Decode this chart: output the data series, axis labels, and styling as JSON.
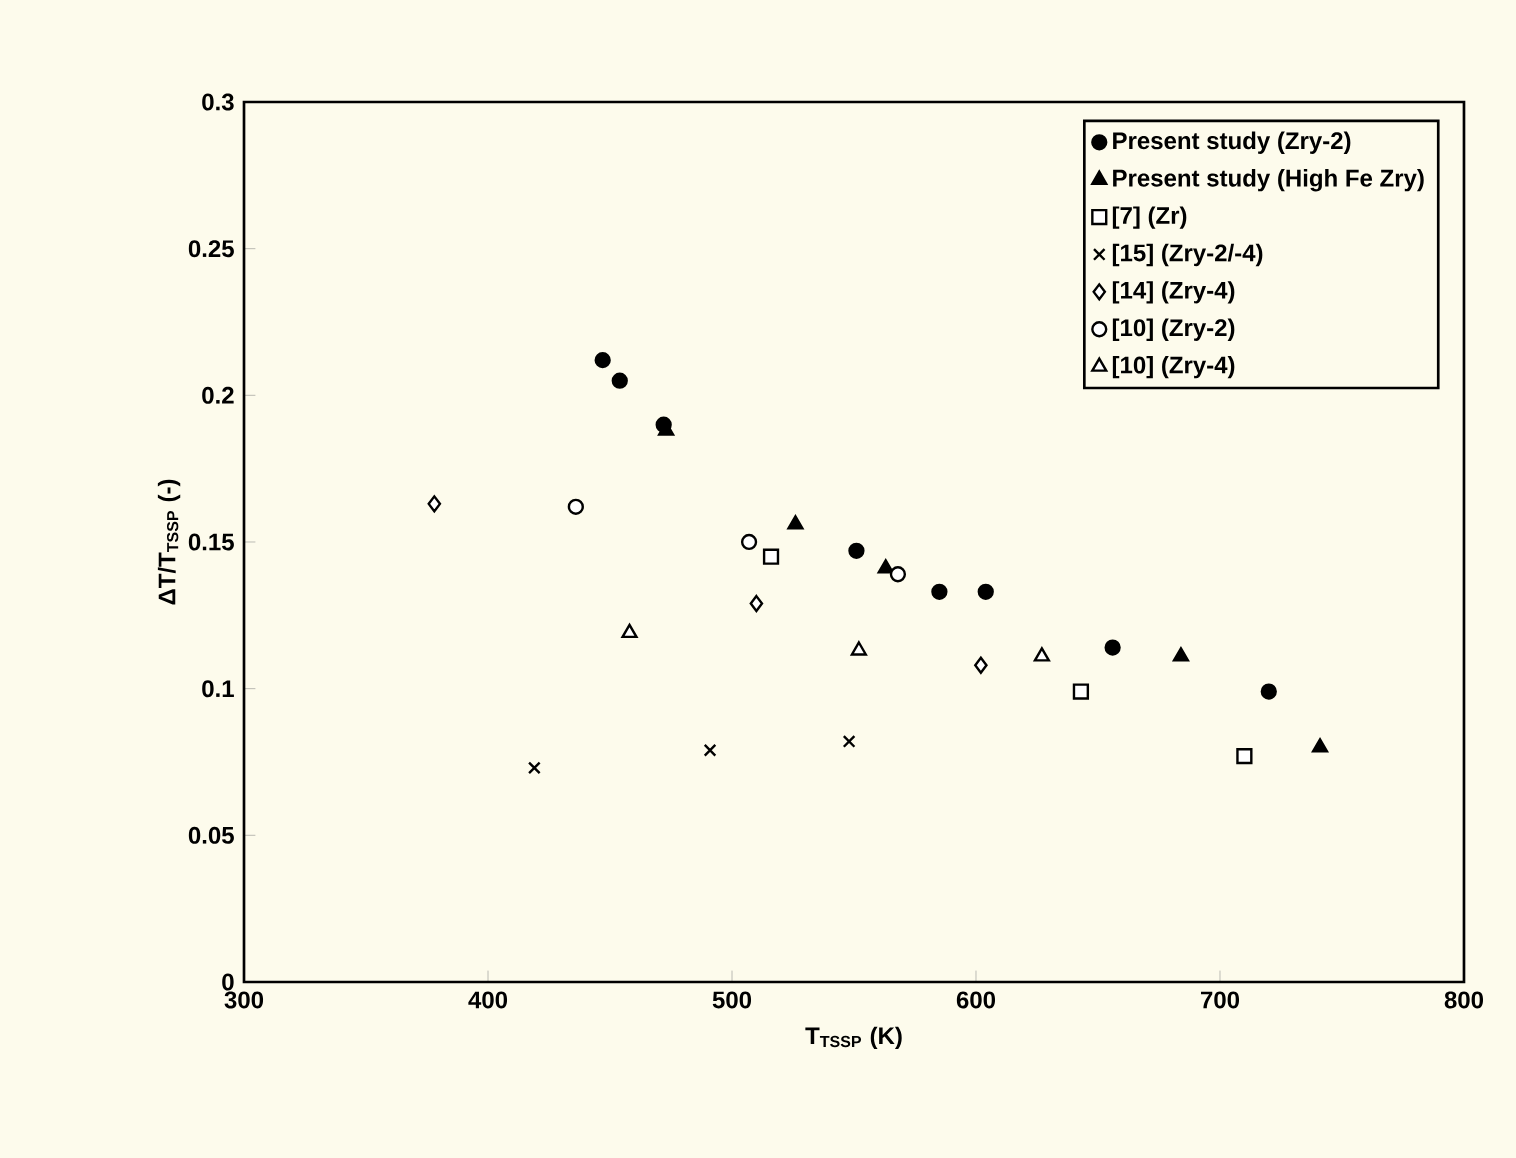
{
  "chart_data": {
    "type": "scatter",
    "xlabel": "T$_{TSSP}$ (K)",
    "ylabel": "ΔT/T$_{TSSP}$ (-)",
    "xlim": [
      300,
      800
    ],
    "xticks": [
      300,
      400,
      500,
      600,
      700,
      800
    ],
    "ylim": [
      0,
      0.3
    ],
    "yticks": [
      0,
      0.05,
      0.1,
      0.15,
      0.2,
      0.25,
      0.3
    ],
    "grid": false,
    "legend": "top right",
    "series": [
      {
        "name": "Present study (Zry-2)",
        "color": "#000000",
        "marker": "circle",
        "x": [
          447,
          454,
          472,
          551,
          585,
          604,
          656,
          720
        ],
        "values": [
          0.212,
          0.205,
          0.19,
          0.147,
          0.133,
          0.133,
          0.114,
          0.099
        ]
      },
      {
        "name": "Present study (High Fe Zry)",
        "color": "#000000",
        "marker": "triangle",
        "x": [
          473,
          526,
          563,
          684,
          741
        ],
        "values": [
          0.188,
          0.156,
          0.141,
          0.111,
          0.08
        ]
      },
      {
        "name": "[7] (Zr)",
        "color": "#000000",
        "marker": "square open",
        "x": [
          516,
          643,
          710
        ],
        "values": [
          0.145,
          0.099,
          0.077
        ]
      },
      {
        "name": "[15] (Zry-2/-4)",
        "color": "#000000",
        "marker": "cross",
        "x": [
          419,
          491,
          548
        ],
        "values": [
          0.073,
          0.079,
          0.082
        ]
      },
      {
        "name": "[14] (Zry-4)",
        "color": "#000000",
        "marker": "diamond open",
        "x": [
          378,
          510,
          602
        ],
        "values": [
          0.163,
          0.129,
          0.108
        ]
      },
      {
        "name": "[10] (Zry-2)",
        "color": "#000000",
        "marker": "circle open",
        "x": [
          436,
          507,
          568
        ],
        "values": [
          0.162,
          0.15,
          0.139
        ]
      },
      {
        "name": "[10] (Zry-4)",
        "color": "#000000",
        "marker": "triangle open",
        "x": [
          458,
          552,
          627
        ],
        "values": [
          0.119,
          0.113,
          0.111
        ]
      }
    ]
  }
}
